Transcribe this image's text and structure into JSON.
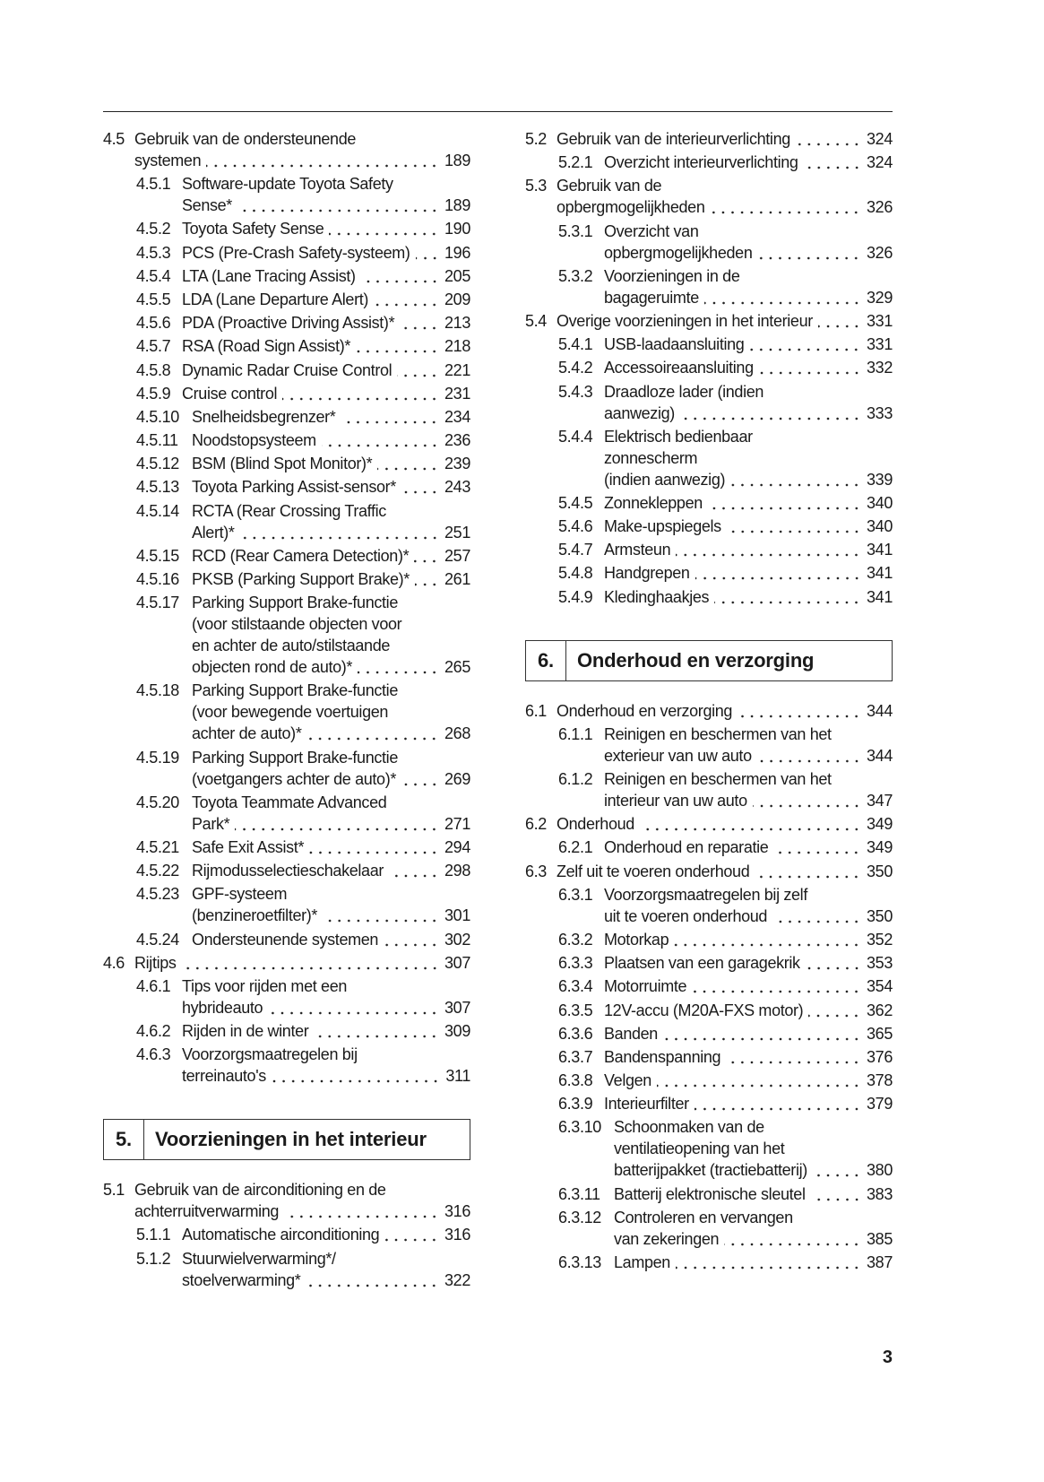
{
  "page_number": "3",
  "left_column": [
    {
      "type": "entry",
      "level": 1,
      "num": "4.5",
      "lines": [
        "Gebruik van de ondersteunende",
        "systemen"
      ],
      "page": "189"
    },
    {
      "type": "entry",
      "level": 2,
      "num": "4.5.1",
      "lines": [
        "Software-update Toyota Safety",
        "Sense*"
      ],
      "page": "189"
    },
    {
      "type": "entry",
      "level": 2,
      "num": "4.5.2",
      "lines": [
        "Toyota Safety Sense"
      ],
      "page": "190"
    },
    {
      "type": "entry",
      "level": 2,
      "num": "4.5.3",
      "lines": [
        "PCS (Pre-Crash Safety-systeem)"
      ],
      "page": "196"
    },
    {
      "type": "entry",
      "level": 2,
      "num": "4.5.4",
      "lines": [
        "LTA (Lane Tracing Assist)"
      ],
      "page": "205"
    },
    {
      "type": "entry",
      "level": 2,
      "num": "4.5.5",
      "lines": [
        "LDA (Lane Departure Alert)"
      ],
      "page": "209"
    },
    {
      "type": "entry",
      "level": 2,
      "num": "4.5.6",
      "lines": [
        "PDA (Proactive Driving Assist)*"
      ],
      "page": "213"
    },
    {
      "type": "entry",
      "level": 2,
      "num": "4.5.7",
      "lines": [
        "RSA (Road Sign Assist)*"
      ],
      "page": "218"
    },
    {
      "type": "entry",
      "level": 2,
      "num": "4.5.8",
      "lines": [
        "Dynamic Radar Cruise Control"
      ],
      "page": "221"
    },
    {
      "type": "entry",
      "level": 2,
      "num": "4.5.9",
      "lines": [
        "Cruise control"
      ],
      "page": "231"
    },
    {
      "type": "entry",
      "level": 2,
      "num": "4.5.10",
      "lines": [
        "Snelheidsbegrenzer*"
      ],
      "page": "234"
    },
    {
      "type": "entry",
      "level": 2,
      "num": "4.5.11",
      "lines": [
        "Noodstopsysteem"
      ],
      "page": "236"
    },
    {
      "type": "entry",
      "level": 2,
      "num": "4.5.12",
      "lines": [
        "BSM (Blind Spot Monitor)*"
      ],
      "page": "239"
    },
    {
      "type": "entry",
      "level": 2,
      "num": "4.5.13",
      "lines": [
        "Toyota Parking Assist-sensor*"
      ],
      "page": "243"
    },
    {
      "type": "entry",
      "level": 2,
      "num": "4.5.14",
      "lines": [
        "RCTA (Rear Crossing Traffic",
        "Alert)*"
      ],
      "page": "251"
    },
    {
      "type": "entry",
      "level": 2,
      "num": "4.5.15",
      "lines": [
        "RCD (Rear Camera Detection)*"
      ],
      "page": "257"
    },
    {
      "type": "entry",
      "level": 2,
      "num": "4.5.16",
      "lines": [
        "PKSB (Parking Support Brake)*"
      ],
      "page": "261"
    },
    {
      "type": "entry",
      "level": 2,
      "num": "4.5.17",
      "lines": [
        "Parking Support Brake-functie",
        "(voor stilstaande objecten voor",
        "en achter de auto/stilstaande",
        "objecten rond de auto)*"
      ],
      "page": "265"
    },
    {
      "type": "entry",
      "level": 2,
      "num": "4.5.18",
      "lines": [
        "Parking Support Brake-functie",
        "(voor bewegende voertuigen",
        "achter de auto)*"
      ],
      "page": "268"
    },
    {
      "type": "entry",
      "level": 2,
      "num": "4.5.19",
      "lines": [
        "Parking Support Brake-functie",
        "(voetgangers achter de auto)*"
      ],
      "page": "269"
    },
    {
      "type": "entry",
      "level": 2,
      "num": "4.5.20",
      "lines": [
        "Toyota Teammate Advanced",
        "Park*"
      ],
      "page": "271"
    },
    {
      "type": "entry",
      "level": 2,
      "num": "4.5.21",
      "lines": [
        "Safe Exit Assist*"
      ],
      "page": "294"
    },
    {
      "type": "entry",
      "level": 2,
      "num": "4.5.22",
      "lines": [
        "Rijmodusselectieschakelaar"
      ],
      "page": "298"
    },
    {
      "type": "entry",
      "level": 2,
      "num": "4.5.23",
      "lines": [
        "GPF-systeem",
        "(benzineroetfilter)*"
      ],
      "page": "301"
    },
    {
      "type": "entry",
      "level": 2,
      "num": "4.5.24",
      "lines": [
        "Ondersteunende systemen"
      ],
      "page": "302"
    },
    {
      "type": "entry",
      "level": 1,
      "num": "4.6",
      "lines": [
        "Rijtips"
      ],
      "page": "307"
    },
    {
      "type": "entry",
      "level": 2,
      "num": "4.6.1",
      "lines": [
        "Tips voor rijden met een",
        "hybrideauto"
      ],
      "page": "307"
    },
    {
      "type": "entry",
      "level": 2,
      "num": "4.6.2",
      "lines": [
        "Rijden in de winter"
      ],
      "page": "309"
    },
    {
      "type": "entry",
      "level": 2,
      "num": "4.6.3",
      "lines": [
        "Voorzorgsmaatregelen bij",
        "terreinauto's"
      ],
      "page": "311"
    },
    {
      "type": "section",
      "num": "5.",
      "title": "Voorzieningen in het interieur"
    },
    {
      "type": "entry",
      "level": 1,
      "num": "5.1",
      "lines": [
        "Gebruik van de airconditioning en de",
        "achterruitverwarming"
      ],
      "page": "316"
    },
    {
      "type": "entry",
      "level": 2,
      "num": "5.1.1",
      "lines": [
        "Automatische airconditioning"
      ],
      "page": "316"
    },
    {
      "type": "entry",
      "level": 2,
      "num": "5.1.2",
      "lines": [
        "Stuurwielverwarming*/",
        "stoelverwarming*"
      ],
      "page": "322"
    }
  ],
  "right_column": [
    {
      "type": "entry",
      "level": 1,
      "num": "5.2",
      "lines": [
        "Gebruik van de interieurverlichting"
      ],
      "page": "324"
    },
    {
      "type": "entry",
      "level": 2,
      "num": "5.2.1",
      "lines": [
        "Overzicht interieurverlichting"
      ],
      "page": "324"
    },
    {
      "type": "entry",
      "level": 1,
      "num": "5.3",
      "lines": [
        "Gebruik van de",
        "opbergmogelijkheden"
      ],
      "page": "326"
    },
    {
      "type": "entry",
      "level": 2,
      "num": "5.3.1",
      "lines": [
        "Overzicht van",
        "opbergmogelijkheden"
      ],
      "page": "326"
    },
    {
      "type": "entry",
      "level": 2,
      "num": "5.3.2",
      "lines": [
        "Voorzieningen in de",
        "bagageruimte"
      ],
      "page": "329"
    },
    {
      "type": "entry",
      "level": 1,
      "num": "5.4",
      "lines": [
        "Overige voorzieningen in het interieur"
      ],
      "page": "331"
    },
    {
      "type": "entry",
      "level": 2,
      "num": "5.4.1",
      "lines": [
        "USB-laadaansluiting"
      ],
      "page": "331"
    },
    {
      "type": "entry",
      "level": 2,
      "num": "5.4.2",
      "lines": [
        "Accessoireaansluiting"
      ],
      "page": "332"
    },
    {
      "type": "entry",
      "level": 2,
      "num": "5.4.3",
      "lines": [
        "Draadloze lader (indien",
        "aanwezig)"
      ],
      "page": "333"
    },
    {
      "type": "entry",
      "level": 2,
      "num": "5.4.4",
      "lines": [
        "Elektrisch bedienbaar",
        "zonnescherm",
        "(indien aanwezig)"
      ],
      "page": "339"
    },
    {
      "type": "entry",
      "level": 2,
      "num": "5.4.5",
      "lines": [
        "Zonnekleppen"
      ],
      "page": "340"
    },
    {
      "type": "entry",
      "level": 2,
      "num": "5.4.6",
      "lines": [
        "Make-upspiegels"
      ],
      "page": "340"
    },
    {
      "type": "entry",
      "level": 2,
      "num": "5.4.7",
      "lines": [
        "Armsteun"
      ],
      "page": "341"
    },
    {
      "type": "entry",
      "level": 2,
      "num": "5.4.8",
      "lines": [
        "Handgrepen"
      ],
      "page": "341"
    },
    {
      "type": "entry",
      "level": 2,
      "num": "5.4.9",
      "lines": [
        "Kledinghaakjes"
      ],
      "page": "341"
    },
    {
      "type": "section",
      "num": "6.",
      "title": "Onderhoud en verzorging"
    },
    {
      "type": "entry",
      "level": 1,
      "num": "6.1",
      "lines": [
        "Onderhoud en verzorging"
      ],
      "page": "344"
    },
    {
      "type": "entry",
      "level": 2,
      "num": "6.1.1",
      "lines": [
        "Reinigen en beschermen van het",
        "exterieur van uw auto"
      ],
      "page": "344"
    },
    {
      "type": "entry",
      "level": 2,
      "num": "6.1.2",
      "lines": [
        "Reinigen en beschermen van het",
        "interieur van uw auto"
      ],
      "page": "347"
    },
    {
      "type": "entry",
      "level": 1,
      "num": "6.2",
      "lines": [
        "Onderhoud"
      ],
      "page": "349"
    },
    {
      "type": "entry",
      "level": 2,
      "num": "6.2.1",
      "lines": [
        "Onderhoud en reparatie"
      ],
      "page": "349"
    },
    {
      "type": "entry",
      "level": 1,
      "num": "6.3",
      "lines": [
        "Zelf uit te voeren onderhoud"
      ],
      "page": "350"
    },
    {
      "type": "entry",
      "level": 2,
      "num": "6.3.1",
      "lines": [
        "Voorzorgsmaatregelen bij zelf",
        "uit te voeren onderhoud"
      ],
      "page": "350"
    },
    {
      "type": "entry",
      "level": 2,
      "num": "6.3.2",
      "lines": [
        "Motorkap"
      ],
      "page": "352"
    },
    {
      "type": "entry",
      "level": 2,
      "num": "6.3.3",
      "lines": [
        "Plaatsen van een garagekrik"
      ],
      "page": "353"
    },
    {
      "type": "entry",
      "level": 2,
      "num": "6.3.4",
      "lines": [
        "Motorruimte"
      ],
      "page": "354"
    },
    {
      "type": "entry",
      "level": 2,
      "num": "6.3.5",
      "lines": [
        "12V-accu (M20A-FXS motor)"
      ],
      "page": "362"
    },
    {
      "type": "entry",
      "level": 2,
      "num": "6.3.6",
      "lines": [
        "Banden"
      ],
      "page": "365"
    },
    {
      "type": "entry",
      "level": 2,
      "num": "6.3.7",
      "lines": [
        "Bandenspanning"
      ],
      "page": "376"
    },
    {
      "type": "entry",
      "level": 2,
      "num": "6.3.8",
      "lines": [
        "Velgen"
      ],
      "page": "378"
    },
    {
      "type": "entry",
      "level": 2,
      "num": "6.3.9",
      "lines": [
        "Interieurfilter"
      ],
      "page": "379"
    },
    {
      "type": "entry",
      "level": 2,
      "num": "6.3.10",
      "lines": [
        "Schoonmaken van de",
        "ventilatieopening van het",
        "batterijpakket (tractiebatterij)"
      ],
      "page": "380"
    },
    {
      "type": "entry",
      "level": 2,
      "num": "6.3.11",
      "lines": [
        "Batterij elektronische sleutel"
      ],
      "page": "383"
    },
    {
      "type": "entry",
      "level": 2,
      "num": "6.3.12",
      "lines": [
        "Controleren en vervangen",
        "van zekeringen"
      ],
      "page": "385"
    },
    {
      "type": "entry",
      "level": 2,
      "num": "6.3.13",
      "lines": [
        "Lampen"
      ],
      "page": "387"
    }
  ]
}
